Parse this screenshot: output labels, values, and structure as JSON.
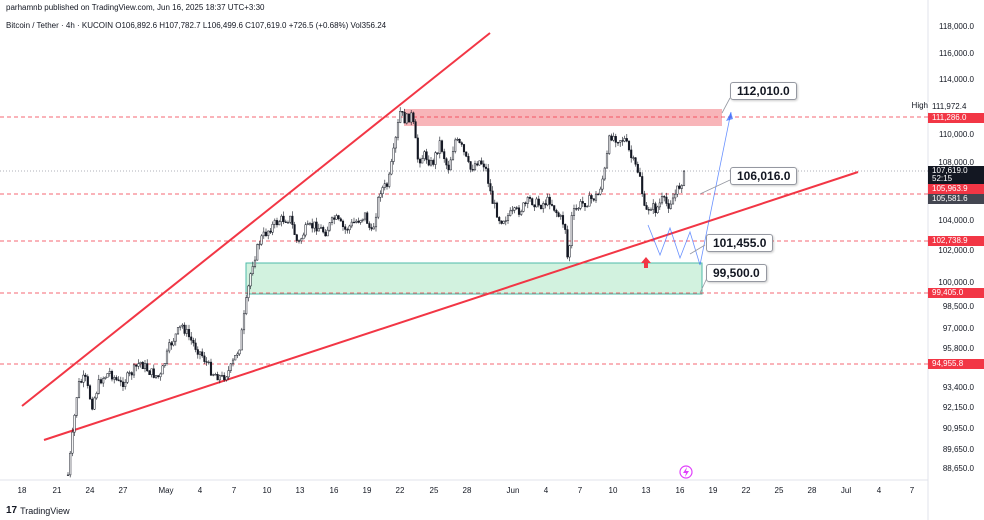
{
  "header": {
    "published": "parhamnb published on TradingView.com, Jun 16, 2025 18:37 UTC+3:30",
    "symbol_line": "Bitcoin / Tether · 4h · KUCOIN  O106,892.6  H107,782.7  L106,499.6  C107,619.0  +726.5 (+0.68%)  Vol356.24"
  },
  "footer": {
    "brand": "TradingView"
  },
  "price_axis": {
    "labels": [
      "118,000.0",
      "116,000.0",
      "114,000.0",
      "110,000.0",
      "108,000.0",
      "104,000.0",
      "102,000.0",
      "100,000.0",
      "98,500.0",
      "97,000.0",
      "95,800.0",
      "93,400.0",
      "92,150.0",
      "90,950.0",
      "89,650.0",
      "88,650.0"
    ],
    "high_label": "High",
    "tags": [
      {
        "text": "111,972.4",
        "color": "#ffffff",
        "text_color": "#131722"
      },
      {
        "text": "111,286.0",
        "color": "#f23645"
      },
      {
        "text": "107,619.0",
        "color": "#131722"
      },
      {
        "text": "52:15",
        "color": "#131722"
      },
      {
        "text": "105,963.9",
        "color": "#f23645"
      },
      {
        "text": "105,581.6",
        "color": "#434651"
      },
      {
        "text": "102,738.9",
        "color": "#f23645"
      },
      {
        "text": "99,405.0",
        "color": "#f23645"
      },
      {
        "text": "94,955.8",
        "color": "#f23645"
      }
    ]
  },
  "time_axis": {
    "labels": [
      "18",
      "21",
      "24",
      "27",
      "May",
      "4",
      "7",
      "10",
      "13",
      "16",
      "19",
      "22",
      "25",
      "28",
      "Jun",
      "4",
      "7",
      "10",
      "13",
      "16",
      "19",
      "22",
      "25",
      "28",
      "Jul",
      "4",
      "7"
    ]
  },
  "callouts": [
    "112,010.0",
    "106,016.0",
    "101,455.0",
    "99,500.0"
  ],
  "colors": {
    "bull": "#131722",
    "bear": "#131722",
    "trendline": "#f23645",
    "resistance_zone": "#f7a8ad",
    "support_zone": "#c8f0d8",
    "support_border": "#22ab94",
    "projection": "#2962ff"
  },
  "icons": [
    "tradingview-logo-icon",
    "lightning-icon",
    "arrow-up-icon"
  ]
}
